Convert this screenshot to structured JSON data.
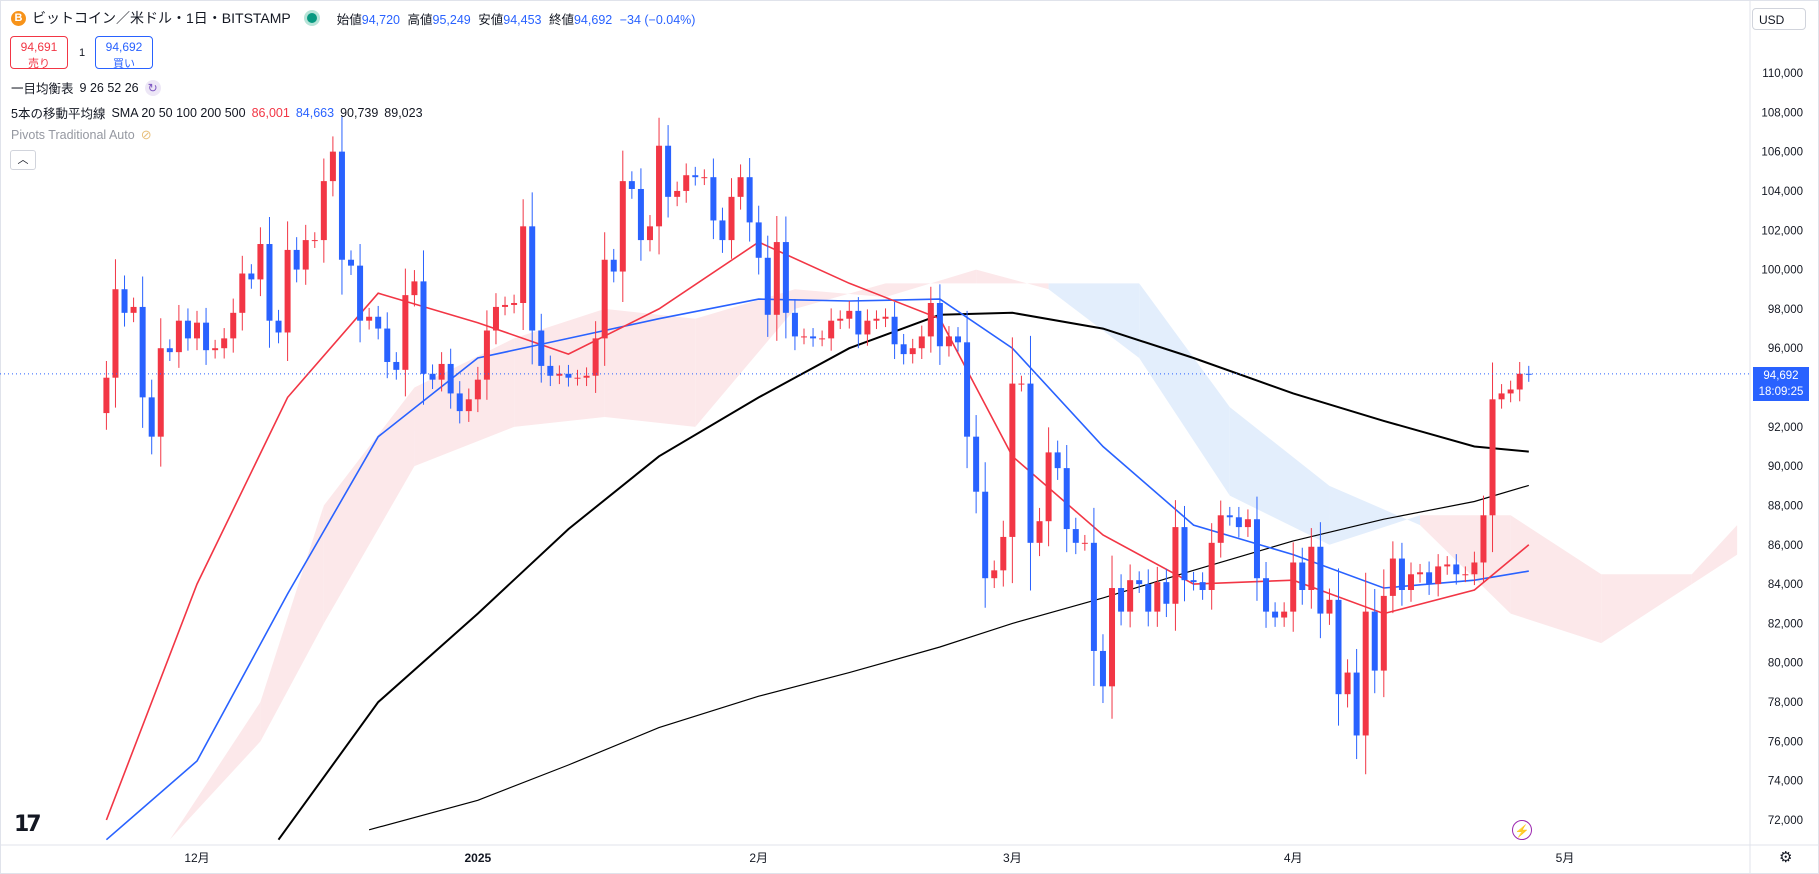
{
  "header": {
    "coin_glyph": "B",
    "title": "ビットコイン／米ドル・1日・BITSTAMP",
    "ohlc": [
      {
        "label": "始値",
        "value": "94,720"
      },
      {
        "label": "高値",
        "value": "95,249"
      },
      {
        "label": "安値",
        "value": "94,453"
      },
      {
        "label": "終値",
        "value": "94,692"
      }
    ],
    "change": "−34 (−0.04%)"
  },
  "trade": {
    "sell_price": "94,691",
    "sell_label": "売り",
    "qty": "1",
    "buy_price": "94,692",
    "buy_label": "買い"
  },
  "indicators": {
    "ichimoku_name": "一目均衡表",
    "ichimoku_params": "9 26 52 26",
    "sma_name": "5本の移動平均線",
    "sma_params": "SMA 20 50 100 200 500",
    "sma_values": [
      {
        "value": "86,001",
        "color": "#f23645"
      },
      {
        "value": "84,663",
        "color": "#2962ff"
      },
      {
        "value": "90,739",
        "color": "#131722"
      },
      {
        "value": "89,023",
        "color": "#131722"
      }
    ],
    "pivots": "Pivots Traditional Auto"
  },
  "currency": "USD",
  "last_price": {
    "price": "94,692",
    "countdown": "18:09:25",
    "value": 94692
  },
  "icons": {
    "logo": "tradingview-logo-icon",
    "collapse": "chevron-up-icon",
    "bolt": "lightning-icon",
    "settings": "gear-icon",
    "refresh": "refresh-icon",
    "eye": "eye-hidden-icon"
  },
  "colors": {
    "up": "#f23645",
    "down": "#2962ff",
    "sma20": "#f23645",
    "sma50": "#2962ff",
    "sma100": "#000000",
    "sma200": "#000000",
    "kumo_bull": "#fce8ea",
    "kumo_bear": "#e3eefc"
  },
  "chart_data": {
    "type": "candlestick",
    "price_axis": {
      "min": 71000,
      "max": 111500,
      "ticks": [
        72000,
        74000,
        76000,
        78000,
        80000,
        82000,
        84000,
        86000,
        88000,
        90000,
        92000,
        94000,
        96000,
        98000,
        100000,
        102000,
        104000,
        106000,
        108000,
        110000
      ]
    },
    "time_axis": {
      "labels": [
        "12月",
        "2025",
        "2月",
        "3月",
        "4月",
        "5月"
      ],
      "label_dates": [
        "2024-12-01",
        "2025-01-01",
        "2025-02-01",
        "2025-03-01",
        "2025-04-01",
        "2025-05-01"
      ]
    },
    "dates": [
      "2024-11-21",
      "2024-11-22",
      "2024-11-23",
      "2024-11-24",
      "2024-11-25",
      "2024-11-26",
      "2024-11-27",
      "2024-11-28",
      "2024-11-29",
      "2024-11-30",
      "2024-12-01",
      "2024-12-02",
      "2024-12-03",
      "2024-12-04",
      "2024-12-05",
      "2024-12-06",
      "2024-12-07",
      "2024-12-08",
      "2024-12-09",
      "2024-12-10",
      "2024-12-11",
      "2024-12-12",
      "2024-12-13",
      "2024-12-14",
      "2024-12-15",
      "2024-12-16",
      "2024-12-17",
      "2024-12-18",
      "2024-12-19",
      "2024-12-20",
      "2024-12-21",
      "2024-12-22",
      "2024-12-23",
      "2024-12-24",
      "2024-12-25",
      "2024-12-26",
      "2024-12-27",
      "2024-12-28",
      "2024-12-29",
      "2024-12-30",
      "2024-12-31",
      "2025-01-01",
      "2025-01-02",
      "2025-01-03",
      "2025-01-04",
      "2025-01-05",
      "2025-01-06",
      "2025-01-07",
      "2025-01-08",
      "2025-01-09",
      "2025-01-10",
      "2025-01-11",
      "2025-01-12",
      "2025-01-13",
      "2025-01-14",
      "2025-01-15",
      "2025-01-16",
      "2025-01-17",
      "2025-01-18",
      "2025-01-19",
      "2025-01-20",
      "2025-01-21",
      "2025-01-22",
      "2025-01-23",
      "2025-01-24",
      "2025-01-25",
      "2025-01-26",
      "2025-01-27",
      "2025-01-28",
      "2025-01-29",
      "2025-01-30",
      "2025-01-31",
      "2025-02-01",
      "2025-02-02",
      "2025-02-03",
      "2025-02-04",
      "2025-02-05",
      "2025-02-06",
      "2025-02-07",
      "2025-02-08",
      "2025-02-09",
      "2025-02-10",
      "2025-02-11",
      "2025-02-12",
      "2025-02-13",
      "2025-02-14",
      "2025-02-15",
      "2025-02-16",
      "2025-02-17",
      "2025-02-18",
      "2025-02-19",
      "2025-02-20",
      "2025-02-21",
      "2025-02-22",
      "2025-02-23",
      "2025-02-24",
      "2025-02-25",
      "2025-02-26",
      "2025-02-27",
      "2025-02-28",
      "2025-03-01",
      "2025-03-02",
      "2025-03-03",
      "2025-03-04",
      "2025-03-05",
      "2025-03-06",
      "2025-03-07",
      "2025-03-08",
      "2025-03-09",
      "2025-03-10",
      "2025-03-11",
      "2025-03-12",
      "2025-03-13",
      "2025-03-14",
      "2025-03-15",
      "2025-03-16",
      "2025-03-17",
      "2025-03-18",
      "2025-03-19",
      "2025-03-20",
      "2025-03-21",
      "2025-03-22",
      "2025-03-23",
      "2025-03-24",
      "2025-03-25",
      "2025-03-26",
      "2025-03-27",
      "2025-03-28",
      "2025-03-29",
      "2025-03-30",
      "2025-03-31",
      "2025-04-01",
      "2025-04-02",
      "2025-04-03",
      "2025-04-04",
      "2025-04-05",
      "2025-04-06",
      "2025-04-07",
      "2025-04-08",
      "2025-04-09",
      "2025-04-10",
      "2025-04-11",
      "2025-04-12",
      "2025-04-13",
      "2025-04-14",
      "2025-04-15",
      "2025-04-16",
      "2025-04-17",
      "2025-04-18",
      "2025-04-19",
      "2025-04-20",
      "2025-04-21",
      "2025-04-22",
      "2025-04-23",
      "2025-04-24",
      "2025-04-25",
      "2025-04-26",
      "2025-04-27"
    ],
    "close": [
      94500,
      99000,
      97800,
      98100,
      93500,
      91500,
      96000,
      95800,
      97400,
      96500,
      97300,
      95900,
      96000,
      96500,
      97800,
      99800,
      99500,
      101300,
      97400,
      96800,
      101000,
      100000,
      101500,
      101500,
      104500,
      106000,
      100500,
      100200,
      97400,
      97600,
      97000,
      95300,
      94900,
      98700,
      99400,
      94700,
      94400,
      95200,
      93700,
      92800,
      93400,
      94400,
      96900,
      98100,
      98200,
      98300,
      102200,
      96900,
      95100,
      94600,
      94700,
      94500,
      94500,
      94600,
      96500,
      100500,
      99900,
      104500,
      104100,
      101500,
      102200,
      106300,
      103700,
      104000,
      104800,
      104700,
      104700,
      102500,
      101500,
      103700,
      104700,
      102400,
      100600,
      97700,
      101400,
      97800,
      96600,
      96600,
      96500,
      96500,
      97400,
      97500,
      97900,
      96700,
      97400,
      97500,
      97600,
      96200,
      95700,
      96000,
      96600,
      98300,
      96100,
      96600,
      96300,
      91500,
      88700,
      84300,
      84700,
      86400,
      94200,
      94200,
      86100,
      87200,
      90700,
      89900,
      86800,
      86100,
      86100,
      80600,
      78800,
      83800,
      82600,
      84200,
      84000,
      82600,
      84100,
      83000,
      86900,
      84200,
      84100,
      83700,
      86100,
      87500,
      87400,
      86900,
      87300,
      84300,
      82600,
      82300,
      82600,
      85100,
      83700,
      85900,
      82500,
      83200,
      78400,
      79500,
      76300,
      82600,
      79600,
      83400,
      85300,
      83700,
      84500,
      84600,
      84000,
      84900,
      85000,
      84500,
      84500,
      85100,
      87500,
      93400,
      93700,
      93900,
      94700,
      94692
    ],
    "sma_20_approx": {
      "dates": [
        "2024-11-21",
        "2024-12-01",
        "2024-12-11",
        "2024-12-21",
        "2025-01-01",
        "2025-01-11",
        "2025-01-21",
        "2025-02-01",
        "2025-02-11",
        "2025-02-21",
        "2025-03-01",
        "2025-03-11",
        "2025-03-21",
        "2025-04-01",
        "2025-04-11",
        "2025-04-21",
        "2025-04-27"
      ],
      "values": [
        72000,
        84000,
        93500,
        98800,
        97300,
        95700,
        98000,
        101400,
        99300,
        97500,
        90500,
        86500,
        84000,
        84200,
        82500,
        83700,
        86000
      ]
    },
    "sma_50_approx": {
      "dates": [
        "2024-11-21",
        "2024-12-01",
        "2024-12-11",
        "2024-12-21",
        "2025-01-01",
        "2025-01-11",
        "2025-01-21",
        "2025-02-01",
        "2025-02-11",
        "2025-02-21",
        "2025-03-01",
        "2025-03-11",
        "2025-03-21",
        "2025-04-01",
        "2025-04-11",
        "2025-04-21",
        "2025-04-27"
      ],
      "values": [
        71000,
        75000,
        83500,
        91500,
        95500,
        96500,
        97500,
        98500,
        98400,
        98500,
        96000,
        91000,
        87000,
        85500,
        83800,
        84200,
        84663
      ]
    },
    "sma_100_approx": {
      "dates": [
        "2024-12-10",
        "2024-12-21",
        "2025-01-01",
        "2025-01-11",
        "2025-01-21",
        "2025-02-01",
        "2025-02-11",
        "2025-02-21",
        "2025-03-01",
        "2025-03-11",
        "2025-03-21",
        "2025-04-01",
        "2025-04-11",
        "2025-04-21",
        "2025-04-27"
      ],
      "values": [
        71000,
        78000,
        82500,
        86800,
        90500,
        93500,
        96000,
        97700,
        97800,
        97000,
        95500,
        93700,
        92300,
        91000,
        90739
      ]
    },
    "sma_200_approx": {
      "dates": [
        "2024-12-20",
        "2025-01-01",
        "2025-01-11",
        "2025-01-21",
        "2025-02-01",
        "2025-02-11",
        "2025-02-21",
        "2025-03-01",
        "2025-03-11",
        "2025-03-21",
        "2025-04-01",
        "2025-04-11",
        "2025-04-21",
        "2025-04-27"
      ],
      "values": [
        71500,
        73000,
        74800,
        76700,
        78300,
        79500,
        80800,
        82000,
        83300,
        84700,
        86200,
        87300,
        88200,
        89023
      ]
    },
    "kumo_approx": {
      "dates": [
        "2024-11-28",
        "2024-12-08",
        "2024-12-15",
        "2024-12-25",
        "2025-01-05",
        "2025-01-15",
        "2025-01-25",
        "2025-02-05",
        "2025-02-15",
        "2025-02-25",
        "2025-03-05",
        "2025-03-15",
        "2025-03-25",
        "2025-04-05",
        "2025-04-15",
        "2025-04-25",
        "2025-05-05",
        "2025-05-15",
        "2025-05-20"
      ],
      "span_a": [
        71000,
        78000,
        88000,
        94000,
        96500,
        98000,
        97500,
        99000,
        98600,
        100000,
        99000,
        95500,
        88500,
        86000,
        87500,
        87500,
        84500,
        84500,
        87000
      ],
      "span_b": [
        71000,
        76000,
        82000,
        90000,
        92000,
        92500,
        92000,
        98000,
        99300,
        99300,
        99300,
        99300,
        93000,
        89000,
        87000,
        82500,
        81000,
        84000,
        85500
      ]
    }
  }
}
